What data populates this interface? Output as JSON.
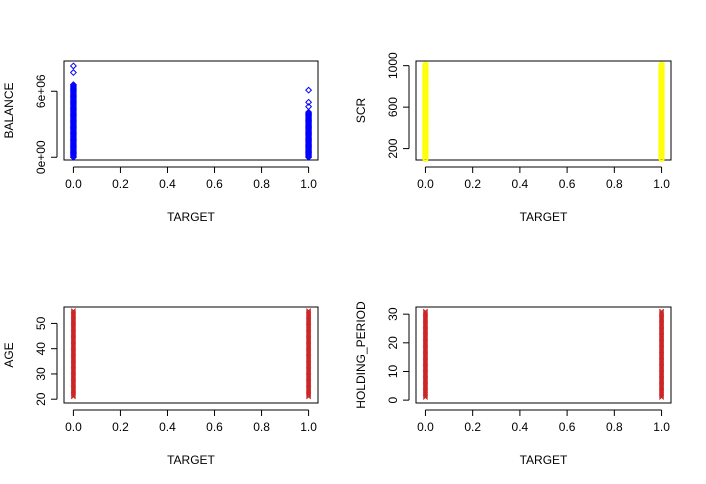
{
  "chart_data": [
    {
      "type": "scatter",
      "xlabel": "TARGET",
      "ylabel": "BALANCE",
      "xlim": [
        -0.04,
        1.04
      ],
      "ylim": [
        -250000,
        8750000
      ],
      "x_ticks": [
        0.0,
        0.2,
        0.4,
        0.6,
        0.8,
        1.0
      ],
      "x_tick_labels": [
        "0.0",
        "0.2",
        "0.4",
        "0.6",
        "0.8",
        "1.0"
      ],
      "y_ticks": [
        0,
        6000000
      ],
      "y_tick_labels": [
        "0e+00",
        "6e+06"
      ],
      "marker": "diamond",
      "color": "#0000ff",
      "columns": [
        {
          "x": 0,
          "y_min": 0,
          "y_max": 6600000,
          "outliers": [
            7700000,
            8300000
          ]
        },
        {
          "x": 1,
          "y_min": 0,
          "y_max": 4100000,
          "outliers": [
            4600000,
            5000000,
            6100000
          ]
        }
      ]
    },
    {
      "type": "scatter",
      "xlabel": "TARGET",
      "ylabel": "SCR",
      "xlim": [
        -0.04,
        1.04
      ],
      "ylim": [
        90,
        1045
      ],
      "x_ticks": [
        0.0,
        0.2,
        0.4,
        0.6,
        0.8,
        1.0
      ],
      "x_tick_labels": [
        "0.0",
        "0.2",
        "0.4",
        "0.6",
        "0.8",
        "1.0"
      ],
      "y_ticks": [
        200,
        600,
        1000
      ],
      "y_tick_labels": [
        "200",
        "600",
        "1000"
      ],
      "marker": "circle",
      "color": "#ffff00",
      "columns": [
        {
          "x": 0,
          "y_min": 100,
          "y_max": 1010,
          "outliers": []
        },
        {
          "x": 1,
          "y_min": 100,
          "y_max": 1010,
          "outliers": []
        }
      ]
    },
    {
      "type": "scatter",
      "xlabel": "TARGET",
      "ylabel": "AGE",
      "xlim": [
        -0.04,
        1.04
      ],
      "ylim": [
        18.5,
        56.5
      ],
      "x_ticks": [
        0.0,
        0.2,
        0.4,
        0.6,
        0.8,
        1.0
      ],
      "x_tick_labels": [
        "0.0",
        "0.2",
        "0.4",
        "0.6",
        "0.8",
        "1.0"
      ],
      "y_ticks": [
        20,
        30,
        40,
        50
      ],
      "y_tick_labels": [
        "20",
        "30",
        "40",
        "50"
      ],
      "marker": "x",
      "color": "#cd2626",
      "columns": [
        {
          "x": 0,
          "y_min": 21,
          "y_max": 55,
          "outliers": []
        },
        {
          "x": 1,
          "y_min": 21,
          "y_max": 55,
          "outliers": []
        }
      ]
    },
    {
      "type": "scatter",
      "xlabel": "TARGET",
      "ylabel": "HOLDING_PERIOD",
      "xlim": [
        -0.04,
        1.04
      ],
      "ylim": [
        -1,
        32.5
      ],
      "x_ticks": [
        0.0,
        0.2,
        0.4,
        0.6,
        0.8,
        1.0
      ],
      "x_tick_labels": [
        "0.0",
        "0.2",
        "0.4",
        "0.6",
        "0.8",
        "1.0"
      ],
      "y_ticks": [
        0,
        10,
        20,
        30
      ],
      "y_tick_labels": [
        "0",
        "10",
        "20",
        "30"
      ],
      "marker": "x",
      "color": "#cd2626",
      "columns": [
        {
          "x": 0,
          "y_min": 1,
          "y_max": 31,
          "outliers": []
        },
        {
          "x": 1,
          "y_min": 1,
          "y_max": 31,
          "outliers": []
        }
      ]
    }
  ]
}
